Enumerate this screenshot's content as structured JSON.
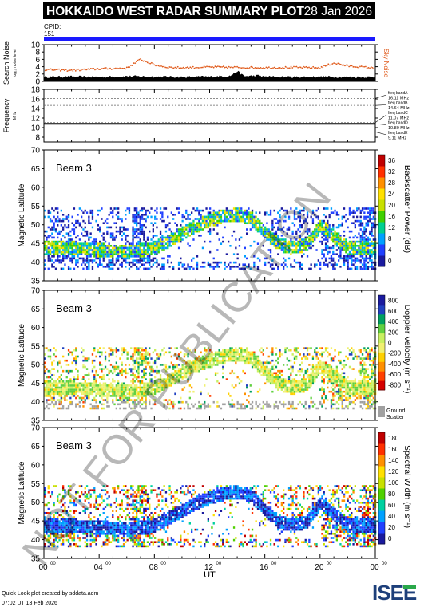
{
  "header": {
    "title": "HOKKAIDO WEST RADAR SUMMARY PLOT",
    "date": "28 Jan 2026",
    "cpid_label": "CPID:",
    "cpid_value": "151"
  },
  "watermark": "NOT FOR PUBLICATION",
  "footer": {
    "line1": "Quick Look plot created by sddata.adm",
    "line2": "07:02 UT 13 Feb 2026",
    "logo": "ISEE"
  },
  "colors": {
    "header_bg": "#000000",
    "cpid_bar": "#1a1aff",
    "sky_noise": "#e05a1a",
    "search_noise": "#000000",
    "ground_scatter": "#a0a0a0"
  },
  "chart_data": [
    {
      "type": "area",
      "name_panel": "noise",
      "ylabel": "Search Noise",
      "ylabel_sub": "log₁₀ noise level",
      "right_label": "Sky Noise",
      "ylim": [
        0,
        10
      ],
      "yticks": [
        "0",
        "2",
        "4",
        "6",
        "8",
        "10"
      ],
      "xlim": [
        0,
        24
      ],
      "search_noise": {
        "x": [
          0,
          2,
          4,
          6,
          8,
          10,
          12,
          13.5,
          14,
          14.5,
          15.5,
          16,
          18,
          20,
          22,
          24
        ],
        "y": [
          1.2,
          1.3,
          1.2,
          1.4,
          1.3,
          1.2,
          1.3,
          1.5,
          2.8,
          1.4,
          1.6,
          1.3,
          1.2,
          1.3,
          1.2,
          1.2
        ]
      },
      "sky_noise": {
        "x": [
          0,
          2,
          4,
          6,
          7,
          8,
          9,
          10,
          12,
          14,
          16,
          18,
          20,
          21,
          22,
          24
        ],
        "y": [
          3.2,
          3.0,
          3.4,
          3.6,
          6.0,
          4.5,
          3.8,
          3.7,
          3.9,
          3.8,
          3.7,
          3.8,
          3.7,
          5.0,
          4.2,
          3.6
        ]
      }
    },
    {
      "type": "line",
      "name_panel": "frequency",
      "ylabel": "Frequency",
      "ylabel_sub": "MHz",
      "ylim": [
        7,
        18
      ],
      "yticks": [
        "8",
        "10",
        "12",
        "14",
        "16",
        "18"
      ],
      "xlim": [
        0,
        24
      ],
      "freq_bands": [
        {
          "label": "freq bandA",
          "mhz": "16.11 MHz",
          "value": 16.11
        },
        {
          "label": "freq bandB",
          "mhz": "14.64 MHz",
          "value": 14.64
        },
        {
          "label": "freq bandC",
          "mhz": "11.07 MHz",
          "value": 11.07
        },
        {
          "label": "freq bandD",
          "mhz": "10.80 MHz",
          "value": 10.8
        },
        {
          "label": "freq bandE",
          "mhz": "9.11 MHz",
          "value": 9.11
        }
      ],
      "series": [
        {
          "x": [
            0,
            24
          ],
          "y": [
            10.8,
            10.8
          ]
        }
      ]
    },
    {
      "type": "heatmap",
      "name_panel": "power",
      "beam": "Beam  3",
      "ylabel": "Magnetic Latitude",
      "ylim": [
        35,
        70
      ],
      "yticks": [
        "35",
        "40",
        "45",
        "50",
        "55",
        "60",
        "65",
        "70"
      ],
      "xlim": [
        0,
        24
      ],
      "colorbar": {
        "label": "Backscatter Power (dB)",
        "ticks": [
          "0",
          "4",
          "8",
          "12",
          "16",
          "20",
          "24",
          "28",
          "32",
          "36"
        ],
        "range": [
          0,
          36
        ]
      },
      "band_mlat": [
        38.5,
        55
      ],
      "ridge": {
        "x": [
          0,
          2,
          4,
          6,
          8,
          10,
          11,
          12,
          13,
          14,
          15,
          16,
          17,
          18,
          19,
          20,
          21,
          22,
          24
        ],
        "y": [
          44,
          44,
          43.5,
          43,
          44,
          48,
          50,
          51.5,
          52.5,
          53,
          52,
          48,
          45,
          44,
          45,
          50,
          47,
          44,
          44
        ]
      }
    },
    {
      "type": "heatmap",
      "name_panel": "velocity",
      "beam": "Beam  3",
      "ylabel": "Magnetic Latitude",
      "ylim": [
        35,
        70
      ],
      "yticks": [
        "35",
        "40",
        "45",
        "50",
        "55",
        "60",
        "65",
        "70"
      ],
      "xlim": [
        0,
        24
      ],
      "colorbar": {
        "label": "Doppler Velocity (m s⁻¹)",
        "ticks": [
          "-800",
          "-600",
          "-400",
          "-200",
          "0",
          "200",
          "400",
          "600",
          "800"
        ],
        "range": [
          -800,
          800
        ]
      },
      "ground_scatter_label": "Ground Scatter",
      "band_mlat": [
        38.5,
        55
      ]
    },
    {
      "type": "heatmap",
      "name_panel": "width",
      "beam": "Beam  3",
      "ylabel": "Magnetic Latitude",
      "ylim": [
        35,
        70
      ],
      "yticks": [
        "35",
        "40",
        "45",
        "50",
        "55",
        "60",
        "65",
        "70"
      ],
      "xlim": [
        0,
        24
      ],
      "colorbar": {
        "label": "Spectral Width (m s⁻¹)",
        "ticks": [
          "0",
          "20",
          "40",
          "60",
          "80",
          "100",
          "120",
          "140",
          "160",
          "180"
        ],
        "range": [
          0,
          180
        ]
      },
      "band_mlat": [
        38.5,
        55
      ],
      "xticks": [
        "00",
        "04",
        "08",
        "12",
        "16",
        "20",
        "00"
      ],
      "xlabel": "UT"
    }
  ]
}
